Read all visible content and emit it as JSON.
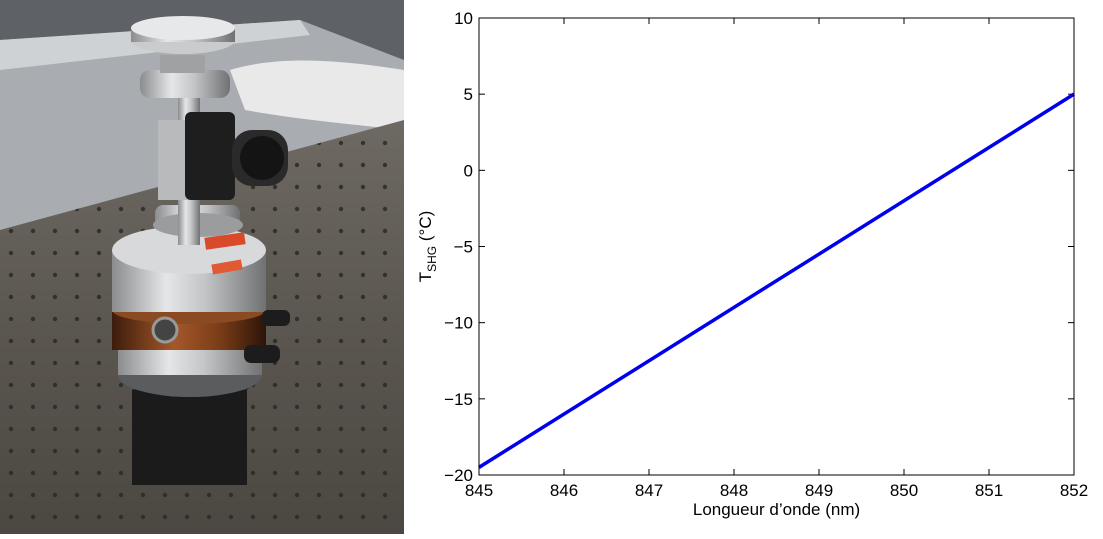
{
  "photo": {
    "description_icon": "crystal-oven-photo"
  },
  "chart_data": {
    "type": "line",
    "title": "",
    "xlabel": "Longueur d’onde (nm)",
    "ylabel_main": "T",
    "ylabel_sub": "SHG",
    "ylabel_unit": " (°C)",
    "xlim": [
      845,
      852
    ],
    "ylim": [
      -20,
      10
    ],
    "xticks": [
      845,
      846,
      847,
      848,
      849,
      850,
      851,
      852
    ],
    "yticks": [
      -20,
      -15,
      -10,
      -5,
      0,
      5,
      10
    ],
    "ytick_labels": [
      "−20",
      "−15",
      "−10",
      "−5",
      "0",
      "5",
      "10"
    ],
    "grid": false,
    "series": [
      {
        "x": [
          845,
          852
        ],
        "y": [
          -19.5,
          5.0
        ],
        "color": "#0000ee"
      }
    ]
  }
}
